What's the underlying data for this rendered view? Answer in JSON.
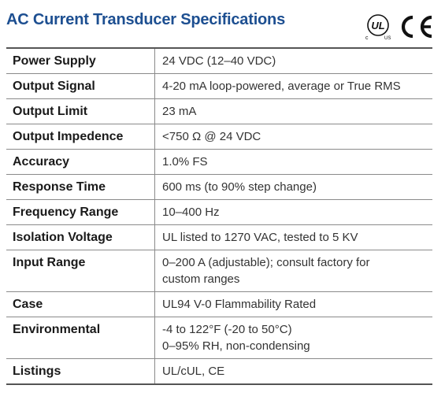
{
  "header": {
    "title": "AC Current Transducer Specifications",
    "ul_logo": {
      "mark": "UL",
      "left": "c",
      "right": "US"
    },
    "ce_logo": "CE"
  },
  "specs": [
    {
      "label": "Power Supply",
      "lines": [
        "24 VDC (12–40 VDC)"
      ]
    },
    {
      "label": "Output Signal",
      "lines": [
        "4-20 mA loop-powered, average or True RMS"
      ]
    },
    {
      "label": "Output Limit",
      "lines": [
        "23 mA"
      ]
    },
    {
      "label": "Output Impedence",
      "lines": [
        "<750 Ω @ 24 VDC"
      ]
    },
    {
      "label": "Accuracy",
      "lines": [
        "1.0% FS"
      ]
    },
    {
      "label": "Response Time",
      "lines": [
        "600 ms (to 90% step change)"
      ]
    },
    {
      "label": "Frequency Range",
      "lines": [
        "10–400 Hz"
      ]
    },
    {
      "label": "Isolation Voltage",
      "lines": [
        "UL listed to 1270 VAC, tested to 5 KV"
      ]
    },
    {
      "label": "Input Range",
      "lines": [
        "0–200 A (adjustable); consult factory for",
        "custom ranges"
      ]
    },
    {
      "label": "Case",
      "lines": [
        "UL94 V-0 Flammability Rated"
      ]
    },
    {
      "label": "Environmental",
      "lines": [
        "-4 to 122°F (-20 to 50°C)",
        "0–95% RH, non-condensing"
      ]
    },
    {
      "label": "Listings",
      "lines": [
        "UL/cUL, CE"
      ]
    }
  ]
}
